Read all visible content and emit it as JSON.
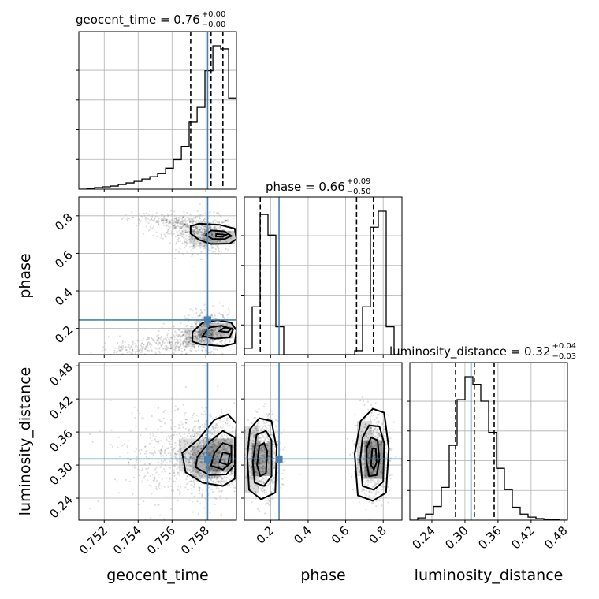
{
  "chart_data": {
    "type": "corner",
    "parameters": [
      "geocent_time",
      "phase",
      "luminosity_distance"
    ],
    "titles": {
      "geocent_time": {
        "label": "geocent_time = 0.76",
        "plus": "+0.00",
        "minus": "−0.00"
      },
      "phase": {
        "label": "phase = 0.66",
        "plus": "+0.09",
        "minus": "−0.50"
      },
      "luminosity_distance": {
        "label": "luminosity_distance = 0.32",
        "plus": "+0.04",
        "minus": "−0.03"
      }
    },
    "axes": {
      "geocent_time": {
        "range": [
          0.7505,
          0.7598
        ],
        "ticks": [
          0.752,
          0.754,
          0.756,
          0.758
        ],
        "tick_labels": [
          "0.752",
          "0.754",
          "0.756",
          "0.758"
        ]
      },
      "phase": {
        "range": [
          0.06,
          0.9
        ],
        "ticks": [
          0.2,
          0.4,
          0.6,
          0.8
        ],
        "tick_labels": [
          "0.2",
          "0.4",
          "0.6",
          "0.8"
        ]
      },
      "luminosity_distance": {
        "range": [
          0.2,
          0.486
        ],
        "ticks": [
          0.24,
          0.3,
          0.36,
          0.42,
          0.48
        ],
        "tick_labels": [
          "0.24",
          "0.30",
          "0.36",
          "0.42",
          "0.48"
        ]
      }
    },
    "truths": {
      "geocent_time": 0.7581,
      "phase": 0.245,
      "luminosity_distance": 0.311
    },
    "quantiles": {
      "geocent_time": [
        0.7571,
        0.7583,
        0.759
      ],
      "phase": [
        0.145,
        0.658,
        0.748
      ],
      "luminosity_distance": [
        0.283,
        0.317,
        0.353
      ]
    },
    "histograms": {
      "geocent_time": {
        "edges": [
          0.7505,
          0.75097,
          0.75143,
          0.7519,
          0.75236,
          0.75283,
          0.75329,
          0.75376,
          0.75422,
          0.75469,
          0.75515,
          0.75562,
          0.75608,
          0.75655,
          0.75701,
          0.75748,
          0.75794,
          0.75841,
          0.75887,
          0.75934,
          0.7598
        ],
        "counts": [
          0,
          1,
          2,
          3,
          4,
          6,
          8,
          10,
          13,
          16,
          20,
          27,
          38,
          55,
          86,
          105,
          152,
          184,
          180,
          117
        ]
      },
      "phase": {
        "edges": [
          0.06,
          0.102,
          0.144,
          0.186,
          0.228,
          0.27,
          0.312,
          0.354,
          0.396,
          0.438,
          0.48,
          0.522,
          0.564,
          0.606,
          0.648,
          0.69,
          0.732,
          0.774,
          0.816,
          0.858,
          0.9
        ],
        "counts": [
          8,
          60,
          176,
          150,
          35,
          0,
          0,
          0,
          0,
          0,
          0,
          0,
          0,
          0,
          5,
          60,
          160,
          180,
          35,
          0
        ]
      },
      "luminosity_distance": {
        "edges": [
          0.2,
          0.2143,
          0.2286,
          0.2429,
          0.2572,
          0.2715,
          0.2858,
          0.3001,
          0.3144,
          0.3287,
          0.343,
          0.3573,
          0.3716,
          0.3859,
          0.4002,
          0.4145,
          0.4288,
          0.4431,
          0.4574,
          0.4717,
          0.486
        ],
        "counts": [
          0,
          3,
          8,
          18,
          43,
          98,
          158,
          188,
          178,
          156,
          115,
          68,
          40,
          17,
          8,
          4,
          2,
          1,
          1,
          0
        ]
      }
    },
    "grid": true
  }
}
